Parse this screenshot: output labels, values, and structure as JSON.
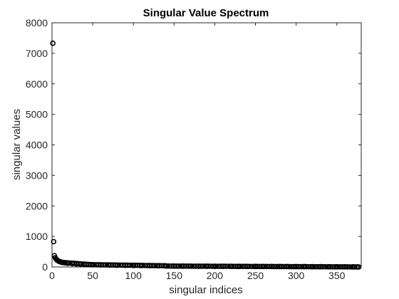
{
  "chart_data": {
    "type": "scatter",
    "title": "Singular Value Spectrum",
    "xlabel": "singular indices",
    "ylabel": "singular values",
    "xlim": [
      0,
      380
    ],
    "ylim": [
      0,
      8000
    ],
    "xticks": [
      0,
      50,
      100,
      150,
      200,
      250,
      300,
      350
    ],
    "yticks": [
      0,
      1000,
      2000,
      3000,
      4000,
      5000,
      6000,
      7000,
      8000
    ],
    "grid": false,
    "marker": "circle",
    "marker_color": "#000000",
    "series": [
      {
        "x": [
          1,
          2,
          3,
          4,
          5,
          6,
          7,
          8,
          9,
          10,
          12,
          14,
          16,
          18,
          20,
          25,
          30,
          35,
          40,
          45,
          50,
          60,
          70,
          80,
          90,
          100,
          110,
          120,
          130,
          140,
          150,
          160,
          170,
          180,
          190,
          200,
          210,
          220,
          230,
          240,
          250,
          260,
          270,
          280,
          290,
          300,
          310,
          320,
          330,
          340,
          350,
          360,
          370,
          375,
          377
        ],
        "y": [
          7330,
          830,
          370,
          300,
          260,
          230,
          210,
          195,
          180,
          170,
          155,
          145,
          135,
          128,
          122,
          110,
          100,
          92,
          86,
          80,
          75,
          68,
          62,
          57,
          53,
          49,
          46,
          43,
          40,
          36,
          30,
          28,
          26,
          25,
          24,
          23,
          22,
          21,
          20,
          19,
          18,
          17,
          16,
          15,
          14,
          13,
          12,
          11,
          10,
          9,
          8,
          6,
          4,
          2,
          0
        ]
      }
    ]
  }
}
